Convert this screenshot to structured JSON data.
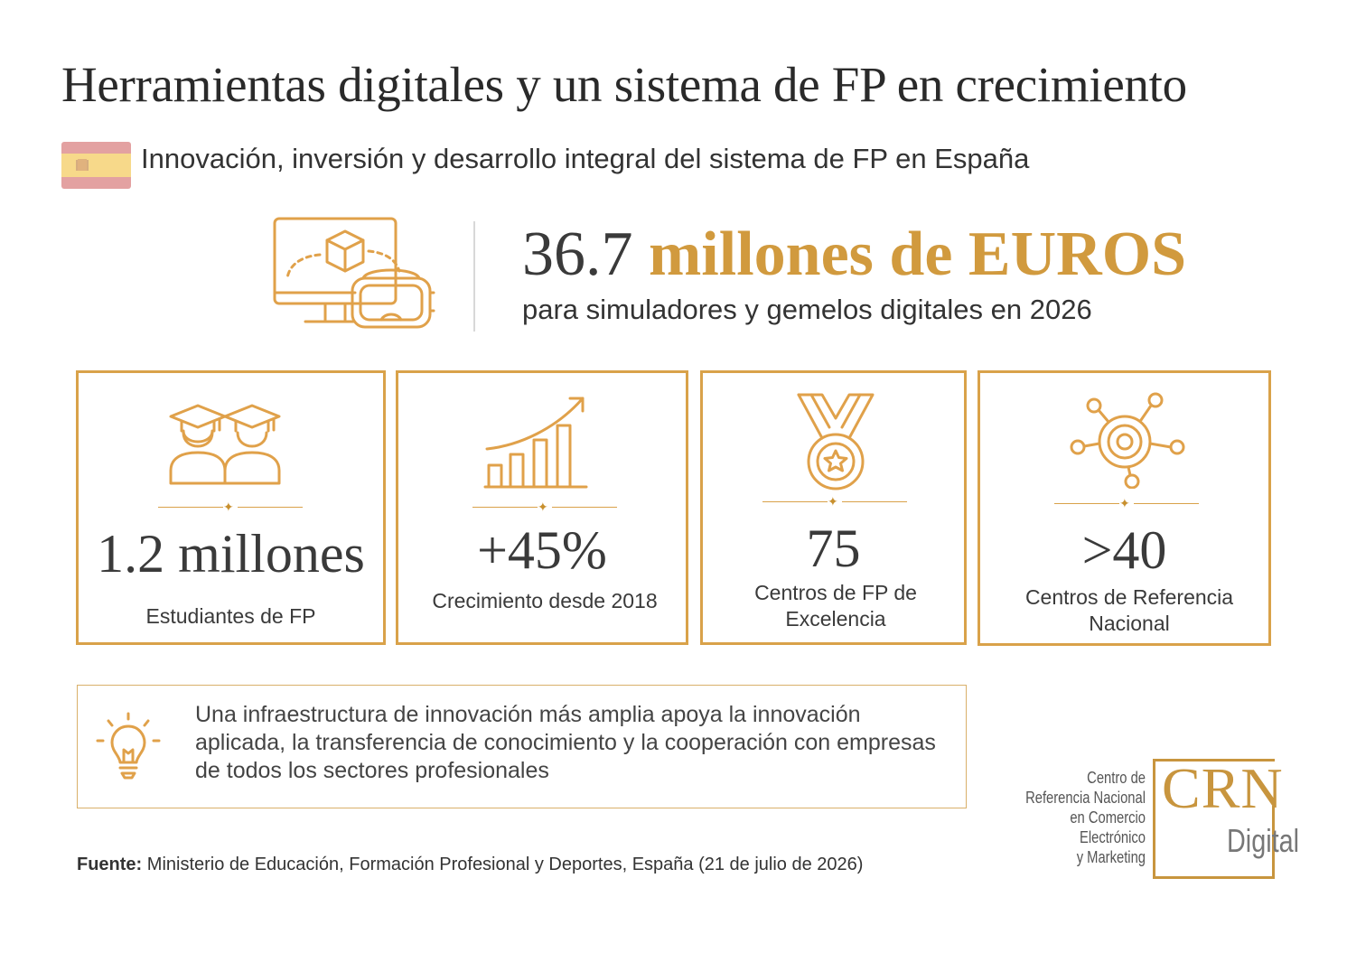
{
  "header": {
    "title": "Herramientas digitales y un sistema de FP en crecimiento",
    "subtitle": "Innovación, inversión y desarrollo integral del sistema de FP en España"
  },
  "hero": {
    "amount_number": "36.7",
    "amount_unit": "millones de EUROS",
    "description": "para simuladores y gemelos digitales en 2026",
    "icon": "monitor-vr-headset-icon"
  },
  "cards": [
    {
      "value": "1.2 millones",
      "label": "Estudiantes de FP",
      "icon": "graduates-icon"
    },
    {
      "value": "+45%",
      "label": "Crecimiento desde 2018",
      "icon": "growth-chart-icon"
    },
    {
      "value": "75",
      "label": "Centros de FP de Excelencia",
      "icon": "medal-icon"
    },
    {
      "value": ">40",
      "label": "Centros de Referencia Nacional",
      "icon": "network-hub-icon"
    }
  ],
  "info": {
    "text": "Una infraestructura de innovación más amplia apoya la innovación aplicada, la transferencia de conocimiento y la cooperación con empresas de todos los sectores profesionales",
    "icon": "lightbulb-icon"
  },
  "logo": {
    "text_lines": [
      "Centro de",
      "Referencia Nacional",
      "en Comercio Electrónico",
      "y Marketing"
    ],
    "mark": "CRN",
    "sub": "Digital"
  },
  "source": {
    "label": "Fuente:",
    "text": "Ministerio de Educación, Formación Profesional y Deportes, España (21 de julio de 2026)"
  },
  "colors": {
    "accent": "#d19a3e",
    "card_border": "#d9a24a",
    "text": "#333333"
  }
}
